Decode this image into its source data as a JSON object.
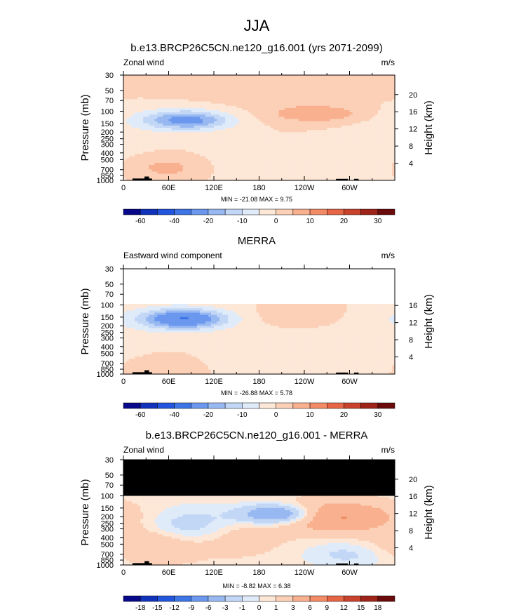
{
  "figure": {
    "title": "JJA"
  },
  "chart_data": [
    {
      "type": "heatmap",
      "title": "b.e13.BRCP26C5CN.ne120_g16.001 (yrs 2071-2099)",
      "left_label": "Zonal wind",
      "units": "m/s",
      "ylabel": "Pressure (mb)",
      "ylabel_right": "Height (km)",
      "x_ticks": [
        "0",
        "60E",
        "120E",
        "180",
        "120W",
        "60W"
      ],
      "x_tick_values": [
        0,
        60,
        120,
        180,
        240,
        300
      ],
      "xlim": [
        0,
        360
      ],
      "y_ticks": [
        "30",
        "50",
        "70",
        "100",
        "150",
        "200",
        "250",
        "300",
        "400",
        "500",
        "700",
        "850",
        "1000"
      ],
      "y_tick_values": [
        30,
        50,
        70,
        100,
        150,
        200,
        250,
        300,
        400,
        500,
        700,
        850,
        1000
      ],
      "ylim": [
        1000,
        30
      ],
      "height_ticks": [
        "20",
        "16",
        "12",
        "8",
        "4"
      ],
      "height_tick_values": [
        20,
        16,
        12,
        8,
        4
      ],
      "top_cutoff_mb": 30,
      "min": -21.08,
      "max": 9.75,
      "min_text": "MIN = -21.08",
      "max_text": "MAX =  9.75",
      "colorbar_labels": [
        "-60",
        "-40",
        "-20",
        "-10",
        "0",
        "10",
        "20",
        "30"
      ],
      "features": [
        {
          "lon": 85,
          "p": 135,
          "value": -21,
          "sx": 40,
          "sy": 0.22
        },
        {
          "lon": 40,
          "p": 120,
          "value": -4,
          "sx": 85,
          "sy": 0.5
        },
        {
          "lon": 250,
          "p": 600,
          "value": -4,
          "sx": 150,
          "sy": 0.5
        },
        {
          "lon": 260,
          "p": 110,
          "value": 9,
          "sx": 45,
          "sy": 0.2
        },
        {
          "lon": 55,
          "p": 650,
          "value": 8,
          "sx": 40,
          "sy": 0.3
        },
        {
          "lon": 200,
          "p": 60,
          "value": 2,
          "sx": 200,
          "sy": 0.5
        }
      ]
    },
    {
      "type": "heatmap",
      "title": "MERRA",
      "left_label": "Eastward wind component",
      "units": "m/s",
      "ylabel": "Pressure (mb)",
      "ylabel_right": "Height (km)",
      "x_ticks": [
        "0",
        "60E",
        "120E",
        "180",
        "120W",
        "60W"
      ],
      "x_tick_values": [
        0,
        60,
        120,
        180,
        240,
        300
      ],
      "xlim": [
        0,
        360
      ],
      "y_ticks": [
        "30",
        "50",
        "70",
        "100",
        "150",
        "200",
        "250",
        "300",
        "400",
        "500",
        "700",
        "850",
        "1000"
      ],
      "y_tick_values": [
        30,
        50,
        70,
        100,
        150,
        200,
        250,
        300,
        400,
        500,
        700,
        850,
        1000
      ],
      "ylim": [
        1000,
        30
      ],
      "height_ticks": [
        "16",
        "12",
        "8",
        "4"
      ],
      "height_tick_values": [
        16,
        12,
        8,
        4
      ],
      "top_cutoff_mb": 100,
      "min": -26.88,
      "max": 5.78,
      "min_text": "MIN = -26.88",
      "max_text": "MAX =  5.78",
      "colorbar_labels": [
        "-60",
        "-40",
        "-20",
        "-10",
        "0",
        "10",
        "20",
        "30"
      ],
      "features": [
        {
          "lon": 80,
          "p": 160,
          "value": -26,
          "sx": 38,
          "sy": 0.22
        },
        {
          "lon": 60,
          "p": 150,
          "value": -5,
          "sx": 75,
          "sy": 0.4
        },
        {
          "lon": 260,
          "p": 500,
          "value": -4,
          "sx": 170,
          "sy": 0.55
        },
        {
          "lon": 230,
          "p": 140,
          "value": 5,
          "sx": 35,
          "sy": 0.25
        },
        {
          "lon": 50,
          "p": 700,
          "value": 4,
          "sx": 45,
          "sy": 0.35
        }
      ]
    },
    {
      "type": "heatmap",
      "title": "b.e13.BRCP26C5CN.ne120_g16.001 - MERRA",
      "left_label": "Zonal wind",
      "units": "m/s",
      "ylabel": "Pressure (mb)",
      "ylabel_right": "Height (km)",
      "x_ticks": [
        "0",
        "60E",
        "120E",
        "180",
        "120W",
        "60W"
      ],
      "x_tick_values": [
        0,
        60,
        120,
        180,
        240,
        300
      ],
      "xlim": [
        0,
        360
      ],
      "y_ticks": [
        "30",
        "50",
        "70",
        "100",
        "150",
        "200",
        "250",
        "300",
        "400",
        "500",
        "700",
        "850",
        "1000"
      ],
      "y_tick_values": [
        30,
        50,
        70,
        100,
        150,
        200,
        250,
        300,
        400,
        500,
        700,
        850,
        1000
      ],
      "ylim": [
        1000,
        30
      ],
      "height_ticks": [
        "20",
        "16",
        "12",
        "8",
        "4"
      ],
      "height_tick_values": [
        20,
        16,
        12,
        8,
        4
      ],
      "masked_above_mb": 100,
      "min": -8.82,
      "max": 6.38,
      "min_text": "MIN = -8.82",
      "max_text": "MAX =  6.38",
      "colorbar_labels": [
        "-18",
        "-15",
        "-12",
        "-9",
        "-6",
        "-3",
        "-1",
        "0",
        "1",
        "3",
        "6",
        "9",
        "12",
        "15",
        "18"
      ],
      "features": [
        {
          "lon": 205,
          "p": 185,
          "value": -8,
          "sx": 35,
          "sy": 0.22
        },
        {
          "lon": 90,
          "p": 300,
          "value": -3,
          "sx": 45,
          "sy": 0.45
        },
        {
          "lon": 280,
          "p": 200,
          "value": 6,
          "sx": 55,
          "sy": 0.35
        },
        {
          "lon": 40,
          "p": 500,
          "value": 3,
          "sx": 50,
          "sy": 0.4
        },
        {
          "lon": 150,
          "p": 400,
          "value": 2,
          "sx": 40,
          "sy": 0.4
        },
        {
          "lon": 300,
          "p": 700,
          "value": -2,
          "sx": 40,
          "sy": 0.3
        }
      ]
    }
  ]
}
